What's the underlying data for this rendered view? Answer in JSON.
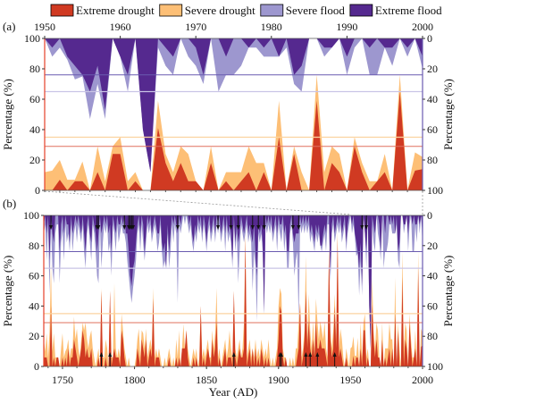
{
  "colors": {
    "extreme_drought": "#d03a22",
    "severe_drought": "#fdbf76",
    "severe_flood": "#9d97cf",
    "extreme_flood": "#55298f",
    "left_axis": "#e5402a",
    "right_axis": "#6a5bb0"
  },
  "legend": [
    "Extreme drought",
    "Severe drought",
    "Severe  flood",
    "Extreme flood"
  ],
  "chart_data": [
    {
      "panel": "(a)",
      "type": "area",
      "x_start": 1950,
      "x_end": 2000,
      "xticks": [
        "1950",
        "1960",
        "1970",
        "1980",
        "1990",
        "2000"
      ],
      "xticks_position": "top",
      "ylabel_left": "Percentage (%)",
      "ylabel_right": "Percentage (%)",
      "yticks_left": [
        "0",
        "20",
        "40",
        "60",
        "80",
        "100"
      ],
      "yticks_right": [
        "100",
        "80",
        "60",
        "40",
        "20",
        "0"
      ],
      "ylim": [
        0,
        100
      ],
      "right_axis_inverted": true,
      "thresholds": {
        "extreme_drought": 29,
        "severe_drought": 35,
        "extreme_flood": 24,
        "severe_flood": 35
      },
      "series": [
        {
          "name": "Extreme drought",
          "values": [
            0,
            0,
            7,
            0,
            6,
            6,
            0,
            12,
            0,
            24,
            24,
            0,
            6,
            0,
            0,
            41,
            18,
            6,
            18,
            6,
            6,
            0,
            18,
            0,
            6,
            0,
            6,
            12,
            0,
            12,
            0,
            35,
            0,
            24,
            0,
            0,
            59,
            0,
            18,
            12,
            0,
            29,
            12,
            0,
            6,
            12,
            0,
            65,
            0,
            13,
            14
          ]
        },
        {
          "name": "Severe drought",
          "stacked_total": [
            12,
            13,
            20,
            7,
            7,
            19,
            0,
            29,
            6,
            29,
            35,
            6,
            12,
            0,
            0,
            59,
            24,
            12,
            29,
            24,
            6,
            0,
            29,
            0,
            12,
            12,
            12,
            29,
            18,
            18,
            0,
            59,
            0,
            29,
            12,
            0,
            76,
            12,
            29,
            24,
            0,
            35,
            18,
            6,
            6,
            24,
            0,
            76,
            0,
            25,
            22
          ]
        },
        {
          "name": "Extreme flood",
          "values": [
            0,
            6,
            0,
            12,
            18,
            24,
            35,
            18,
            47,
            0,
            12,
            24,
            0,
            60,
            88,
            0,
            6,
            12,
            0,
            0,
            6,
            24,
            0,
            0,
            12,
            0,
            0,
            6,
            0,
            6,
            0,
            12,
            0,
            24,
            18,
            0,
            0,
            6,
            6,
            0,
            12,
            0,
            0,
            6,
            0,
            6,
            6,
            0,
            6,
            0,
            12
          ]
        },
        {
          "name": "Severe  flood",
          "stacked_total": [
            0,
            12,
            6,
            14,
            27,
            25,
            53,
            30,
            53,
            0,
            12,
            35,
            0,
            60,
            88,
            6,
            18,
            24,
            0,
            12,
            18,
            30,
            0,
            35,
            24,
            24,
            18,
            6,
            6,
            12,
            12,
            12,
            6,
            30,
            35,
            0,
            0,
            12,
            6,
            0,
            24,
            6,
            0,
            24,
            24,
            6,
            18,
            0,
            12,
            0,
            20
          ]
        }
      ]
    },
    {
      "panel": "(b)",
      "type": "area",
      "x_start": 1737,
      "x_end": 2000,
      "xticks": [
        "1750",
        "1800",
        "1850",
        "1900",
        "1950",
        "2000"
      ],
      "xlabel": "Year (AD)",
      "ylabel_left": "Percentage (%)",
      "ylabel_right": "Percentage (%)",
      "yticks_left": [
        "0",
        "20",
        "40",
        "60",
        "80",
        "100"
      ],
      "yticks_right": [
        "100",
        "80",
        "60",
        "40",
        "20",
        "0"
      ],
      "ylim": [
        0,
        100
      ],
      "right_axis_inverted": true,
      "thresholds": {
        "extreme_drought": 29,
        "severe_drought": 35,
        "extreme_flood": 24,
        "severe_flood": 35
      },
      "series_1737_1949": {
        "drought_total": [
          18,
          10,
          22,
          6,
          23,
          68,
          10,
          22,
          6,
          6,
          6,
          0,
          12,
          22,
          6,
          10,
          12,
          18,
          6,
          12,
          12,
          33,
          18,
          25,
          12,
          6,
          18,
          29,
          24,
          29,
          18,
          12,
          20,
          24,
          12,
          6,
          0,
          6,
          12,
          0,
          52,
          6,
          6,
          18,
          12,
          0,
          50,
          6,
          6,
          55,
          12,
          6,
          12,
          6,
          35,
          24,
          12,
          6,
          0,
          6,
          0,
          0,
          0,
          0,
          6,
          18,
          25,
          6,
          24,
          22,
          12,
          25,
          6,
          12,
          18,
          12,
          52,
          6,
          12,
          6,
          12,
          6,
          0,
          0,
          6,
          0,
          6,
          12,
          6,
          0,
          6,
          0,
          18,
          6,
          24,
          0,
          12,
          28,
          12,
          24,
          12,
          6,
          0,
          6,
          12,
          6,
          12,
          0,
          6,
          40,
          6,
          12,
          6,
          12,
          18,
          6,
          6,
          24,
          12,
          22,
          52,
          6,
          12,
          0,
          6,
          12,
          18,
          6,
          12,
          24,
          12,
          6,
          50,
          12,
          6,
          12,
          18,
          6,
          12,
          29,
          88,
          6,
          12,
          18,
          6,
          12,
          6,
          18,
          6,
          12,
          6,
          18,
          12,
          6,
          12,
          6,
          18,
          6,
          0,
          6,
          0,
          6,
          12,
          40,
          52,
          48,
          12,
          6,
          6,
          0,
          0,
          6,
          0,
          6,
          0,
          12,
          12,
          30,
          42,
          6,
          12,
          24,
          73,
          18,
          48,
          24,
          12,
          30,
          12,
          45,
          30,
          18,
          30,
          24,
          18,
          30,
          12,
          6,
          78,
          24,
          12,
          24,
          48,
          18,
          90,
          12,
          25,
          18,
          6,
          0,
          12,
          6,
          0
        ],
        "extreme_drought": [
          6,
          6,
          6,
          0,
          0,
          40,
          0,
          6,
          0,
          6,
          6,
          0,
          0,
          6,
          0,
          6,
          0,
          12,
          0,
          6,
          6,
          18,
          12,
          6,
          0,
          6,
          12,
          24,
          18,
          6,
          12,
          6,
          6,
          12,
          0,
          0,
          0,
          0,
          6,
          0,
          50,
          0,
          0,
          6,
          0,
          0,
          50,
          0,
          6,
          12,
          6,
          6,
          6,
          0,
          24,
          18,
          6,
          0,
          0,
          0,
          0,
          0,
          0,
          0,
          0,
          12,
          6,
          0,
          18,
          12,
          6,
          18,
          0,
          6,
          12,
          6,
          45,
          0,
          6,
          6,
          6,
          0,
          0,
          0,
          0,
          0,
          0,
          6,
          0,
          0,
          0,
          0,
          6,
          0,
          6,
          0,
          12,
          12,
          12,
          24,
          6,
          0,
          0,
          0,
          6,
          0,
          6,
          0,
          0,
          40,
          0,
          6,
          0,
          6,
          12,
          6,
          0,
          18,
          6,
          12,
          30,
          0,
          6,
          0,
          0,
          6,
          12,
          0,
          6,
          6,
          6,
          0,
          50,
          6,
          0,
          6,
          12,
          6,
          6,
          12,
          85,
          0,
          6,
          12,
          0,
          12,
          0,
          12,
          0,
          6,
          0,
          12,
          6,
          0,
          6,
          0,
          6,
          0,
          0,
          0,
          0,
          0,
          6,
          18,
          40,
          36,
          6,
          0,
          6,
          0,
          0,
          0,
          0,
          0,
          0,
          0,
          6,
          12,
          42,
          0,
          6,
          18,
          50,
          12,
          30,
          12,
          6,
          18,
          6,
          30,
          12,
          12,
          18,
          12,
          12,
          12,
          6,
          0,
          78,
          18,
          6,
          12,
          40,
          12,
          85,
          6,
          12,
          6,
          0,
          0,
          6,
          0,
          0
        ],
        "flood_total": [
          12,
          6,
          30,
          6,
          52,
          6,
          35,
          45,
          12,
          6,
          6,
          45,
          18,
          10,
          30,
          6,
          18,
          12,
          24,
          6,
          24,
          12,
          6,
          18,
          6,
          12,
          18,
          6,
          24,
          35,
          12,
          6,
          18,
          30,
          6,
          12,
          24,
          40,
          45,
          6,
          35,
          18,
          6,
          12,
          6,
          24,
          18,
          40,
          6,
          12,
          24,
          6,
          18,
          12,
          6,
          12,
          12,
          18,
          30,
          40,
          50,
          58,
          48,
          40,
          30,
          12,
          6,
          24,
          6,
          18,
          30,
          18,
          6,
          12,
          6,
          18,
          12,
          6,
          12,
          24,
          18,
          6,
          24,
          35,
          30,
          35,
          12,
          35,
          24,
          6,
          18,
          6,
          12,
          58,
          6,
          12,
          6,
          0,
          6,
          0,
          6,
          12,
          6,
          18,
          24,
          12,
          18,
          6,
          12,
          6,
          18,
          6,
          12,
          24,
          12,
          6,
          18,
          12,
          6,
          18,
          6,
          12,
          6,
          18,
          12,
          6,
          24,
          6,
          18,
          12,
          18,
          35,
          6,
          24,
          12,
          45,
          24,
          6,
          12,
          18,
          12,
          6,
          18,
          12,
          18,
          50,
          24,
          35,
          70,
          12,
          18,
          12,
          24,
          65,
          6,
          12,
          6,
          12,
          6,
          18,
          12,
          6,
          24,
          6,
          12,
          18,
          6,
          24,
          12,
          35,
          35,
          12,
          6,
          18,
          40,
          30,
          24,
          70,
          6,
          12,
          6,
          12,
          6,
          12,
          6,
          18,
          12,
          18,
          24,
          12,
          18,
          12,
          20,
          24,
          18,
          12,
          24,
          6,
          6,
          45,
          12,
          6,
          18,
          12,
          6,
          12,
          6,
          18,
          12,
          6,
          24,
          12,
          6
        ],
        "extreme_flood": [
          6,
          0,
          12,
          0,
          30,
          0,
          12,
          18,
          0,
          0,
          0,
          24,
          6,
          0,
          12,
          0,
          6,
          6,
          18,
          0,
          12,
          6,
          0,
          6,
          0,
          6,
          12,
          0,
          12,
          24,
          6,
          0,
          12,
          18,
          0,
          6,
          12,
          24,
          12,
          0,
          12,
          6,
          0,
          6,
          0,
          12,
          6,
          24,
          0,
          6,
          12,
          0,
          6,
          6,
          0,
          6,
          0,
          12,
          12,
          24,
          40,
          47,
          35,
          30,
          18,
          6,
          0,
          12,
          0,
          6,
          24,
          12,
          0,
          6,
          0,
          12,
          6,
          0,
          6,
          12,
          12,
          0,
          18,
          24,
          18,
          35,
          6,
          24,
          12,
          0,
          6,
          0,
          6,
          12,
          0,
          6,
          0,
          0,
          0,
          0,
          0,
          6,
          0,
          12,
          18,
          6,
          12,
          0,
          6,
          0,
          12,
          0,
          6,
          18,
          6,
          0,
          12,
          6,
          0,
          12,
          0,
          6,
          0,
          12,
          6,
          0,
          12,
          0,
          12,
          6,
          12,
          30,
          0,
          18,
          6,
          18,
          12,
          0,
          6,
          12,
          6,
          0,
          12,
          6,
          12,
          18,
          6,
          24,
          40,
          6,
          12,
          6,
          18,
          65,
          0,
          6,
          0,
          6,
          0,
          12,
          6,
          0,
          12,
          0,
          6,
          6,
          0,
          12,
          6,
          24,
          24,
          6,
          0,
          12,
          18,
          12,
          12,
          12,
          0,
          6,
          0,
          6,
          0,
          6,
          0,
          12,
          6,
          12,
          18,
          6,
          12,
          6,
          20,
          20,
          12,
          6,
          12,
          0,
          0,
          40,
          6,
          0,
          12,
          6,
          0,
          6,
          0,
          12,
          6,
          0,
          18,
          6,
          0
        ]
      },
      "flood_event_arrows": [
        1742,
        1774,
        1775,
        1793,
        1796,
        1797,
        1798,
        1799,
        1830,
        1858,
        1867,
        1872,
        1882,
        1886,
        1890,
        1910,
        1914,
        1958,
        1961
      ],
      "drought_event_arrows": [
        1777,
        1783,
        1869,
        1901,
        1902,
        1919,
        1922,
        1927,
        1939
      ]
    }
  ]
}
